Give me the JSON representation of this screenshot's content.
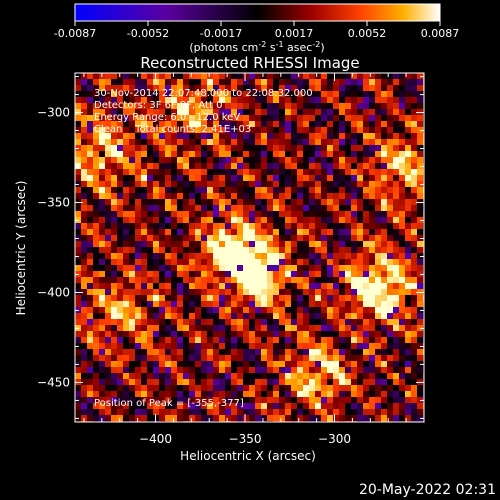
{
  "colorbar": {
    "ticks": [
      "-0.0087",
      "-0.0052",
      "-0.0017",
      "0.0017",
      "0.0052",
      "0.0087"
    ],
    "unit_parts": {
      "pre": "(photons cm",
      "exp1": "-2",
      "mid1": " s",
      "exp2": "-1",
      "mid2": " asec",
      "exp3": "-2",
      "post": ")"
    }
  },
  "annotations": [
    "30-Nov-2014 22:07:48.000 to 22:08:32.000",
    "Detectors: 3F 6F 9F, Att 0",
    "Energy Range: 6.0 - 12.0 keV",
    "Clean    Total counts: 2.41E+03"
  ],
  "peak_label": "Position of Peak = [-355,-377]",
  "footer_timestamp": "20-May-2022 02:31",
  "chart_data": {
    "type": "heatmap",
    "title": "Reconstructed RHESSI Image",
    "xlabel": "Heliocentric X (arcsec)",
    "ylabel": "Heliocentric Y (arcsec)",
    "xlim": [
      -445,
      -250
    ],
    "ylim": [
      -472,
      -278
    ],
    "x_ticks": [
      -400,
      -350,
      -300
    ],
    "y_ticks": [
      -300,
      -350,
      -400,
      -450
    ],
    "x_tick_labels": [
      "−400",
      "−350",
      "−300"
    ],
    "y_tick_labels": [
      "−300",
      "−350",
      "−400",
      "−450"
    ],
    "value_range": [
      -0.0087,
      0.0087
    ],
    "peak_position": [
      -355,
      -377
    ],
    "colormap": [
      "#0000ff",
      "#5000a0",
      "#000000",
      "#a00000",
      "#ff5000",
      "#ffb000",
      "#ffffa0",
      "#ffffff"
    ]
  }
}
